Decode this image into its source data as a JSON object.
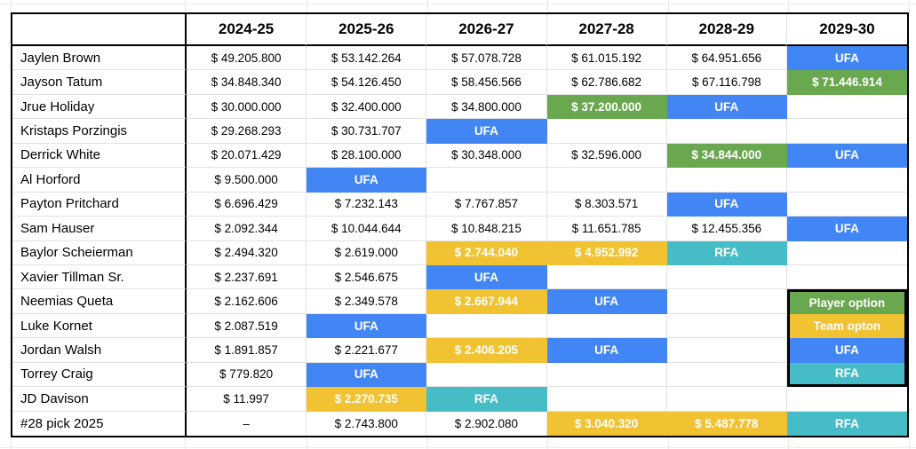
{
  "colors": {
    "green": "#6aa84f",
    "yellow": "#f1c232",
    "blue": "#4285f4",
    "teal": "#46bdc6"
  },
  "header": {
    "corner": "",
    "seasons": [
      "2024-25",
      "2025-26",
      "2026-27",
      "2027-28",
      "2028-29",
      "2029-30"
    ]
  },
  "rows": [
    {
      "player": "Jaylen Brown",
      "cells": [
        {
          "t": "$ 49.205.800"
        },
        {
          "t": "$ 53.142.264"
        },
        {
          "t": "$ 57.078.728"
        },
        {
          "t": "$ 61.015.192"
        },
        {
          "t": "$ 64.951.656"
        },
        {
          "t": "UFA",
          "c": "blue"
        }
      ]
    },
    {
      "player": "Jayson Tatum",
      "cells": [
        {
          "t": "$ 34.848.340"
        },
        {
          "t": "$ 54.126.450"
        },
        {
          "t": "$ 58.456.566"
        },
        {
          "t": "$ 62.786.682"
        },
        {
          "t": "$ 67.116.798"
        },
        {
          "t": "$ 71.446.914",
          "c": "green"
        }
      ]
    },
    {
      "player": "Jrue Holiday",
      "cells": [
        {
          "t": "$ 30.000.000"
        },
        {
          "t": "$ 32.400.000"
        },
        {
          "t": "$ 34.800.000"
        },
        {
          "t": "$ 37.200.000",
          "c": "green"
        },
        {
          "t": "UFA",
          "c": "blue"
        },
        {
          "t": ""
        }
      ]
    },
    {
      "player": "Kristaps Porzingis",
      "cells": [
        {
          "t": "$ 29.268.293"
        },
        {
          "t": "$ 30.731.707"
        },
        {
          "t": "UFA",
          "c": "blue"
        },
        {
          "t": ""
        },
        {
          "t": ""
        },
        {
          "t": ""
        }
      ]
    },
    {
      "player": "Derrick White",
      "cells": [
        {
          "t": "$ 20.071.429"
        },
        {
          "t": "$ 28.100.000"
        },
        {
          "t": "$ 30.348.000"
        },
        {
          "t": "$ 32.596.000"
        },
        {
          "t": "$ 34.844.000",
          "c": "green"
        },
        {
          "t": "UFA",
          "c": "blue"
        }
      ]
    },
    {
      "player": "Al Horford",
      "cells": [
        {
          "t": "$ 9.500.000"
        },
        {
          "t": "UFA",
          "c": "blue"
        },
        {
          "t": ""
        },
        {
          "t": ""
        },
        {
          "t": ""
        },
        {
          "t": ""
        }
      ]
    },
    {
      "player": "Payton Pritchard",
      "cells": [
        {
          "t": "$ 6.696.429"
        },
        {
          "t": "$ 7.232.143"
        },
        {
          "t": "$ 7.767.857"
        },
        {
          "t": "$ 8.303.571"
        },
        {
          "t": "UFA",
          "c": "blue"
        },
        {
          "t": ""
        }
      ]
    },
    {
      "player": "Sam Hauser",
      "cells": [
        {
          "t": "$ 2.092.344"
        },
        {
          "t": "$ 10.044.644"
        },
        {
          "t": "$ 10.848.215"
        },
        {
          "t": "$ 11.651.785"
        },
        {
          "t": "$ 12.455.356"
        },
        {
          "t": "UFA",
          "c": "blue"
        }
      ]
    },
    {
      "player": "Baylor Scheierman",
      "cells": [
        {
          "t": "$ 2.494.320"
        },
        {
          "t": "$ 2.619.000"
        },
        {
          "t": "$ 2.744.040",
          "c": "yellow"
        },
        {
          "t": "$ 4.952.992",
          "c": "yellow"
        },
        {
          "t": "RFA",
          "c": "teal"
        },
        {
          "t": ""
        }
      ]
    },
    {
      "player": "Xavier Tillman Sr.",
      "cells": [
        {
          "t": "$ 2.237.691"
        },
        {
          "t": "$ 2.546.675"
        },
        {
          "t": "UFA",
          "c": "blue"
        },
        {
          "t": ""
        },
        {
          "t": ""
        },
        {
          "t": ""
        }
      ]
    },
    {
      "player": "Neemias Queta",
      "cells": [
        {
          "t": "$ 2.162.606"
        },
        {
          "t": "$ 2.349.578"
        },
        {
          "t": "$ 2.667.944",
          "c": "yellow"
        },
        {
          "t": "UFA",
          "c": "blue"
        },
        {
          "t": ""
        },
        {
          "t": ""
        }
      ]
    },
    {
      "player": "Luke Kornet",
      "cells": [
        {
          "t": "$ 2.087.519"
        },
        {
          "t": "UFA",
          "c": "blue"
        },
        {
          "t": ""
        },
        {
          "t": ""
        },
        {
          "t": ""
        },
        {
          "t": ""
        }
      ]
    },
    {
      "player": "Jordan Walsh",
      "cells": [
        {
          "t": "$ 1.891.857"
        },
        {
          "t": "$ 2.221.677"
        },
        {
          "t": "$ 2.406.205",
          "c": "yellow"
        },
        {
          "t": "UFA",
          "c": "blue"
        },
        {
          "t": ""
        },
        {
          "t": ""
        }
      ]
    },
    {
      "player": "Torrey Craig",
      "cells": [
        {
          "t": "$ 779.820"
        },
        {
          "t": "UFA",
          "c": "blue"
        },
        {
          "t": ""
        },
        {
          "t": ""
        },
        {
          "t": ""
        },
        {
          "t": ""
        }
      ]
    },
    {
      "player": "JD Davison",
      "cells": [
        {
          "t": "$ 11.997"
        },
        {
          "t": "$ 2.270.735",
          "c": "yellow"
        },
        {
          "t": "RFA",
          "c": "teal"
        },
        {
          "t": ""
        },
        {
          "t": ""
        },
        {
          "t": ""
        }
      ]
    },
    {
      "player": "#28 pick 2025",
      "cells": [
        {
          "t": "–"
        },
        {
          "t": "$ 2.743.800"
        },
        {
          "t": "$ 2.902.080"
        },
        {
          "t": "$ 3.040.320",
          "c": "yellow"
        },
        {
          "t": "$ 5.487.778",
          "c": "yellow"
        },
        {
          "t": "RFA",
          "c": "teal"
        }
      ]
    }
  ],
  "legend": {
    "start_row_index": 10,
    "column": "2029-30",
    "items": [
      {
        "label": "Player option",
        "c": "green"
      },
      {
        "label": "Team opton",
        "c": "yellow"
      },
      {
        "label": "UFA",
        "c": "blue"
      },
      {
        "label": "RFA",
        "c": "teal"
      }
    ]
  }
}
